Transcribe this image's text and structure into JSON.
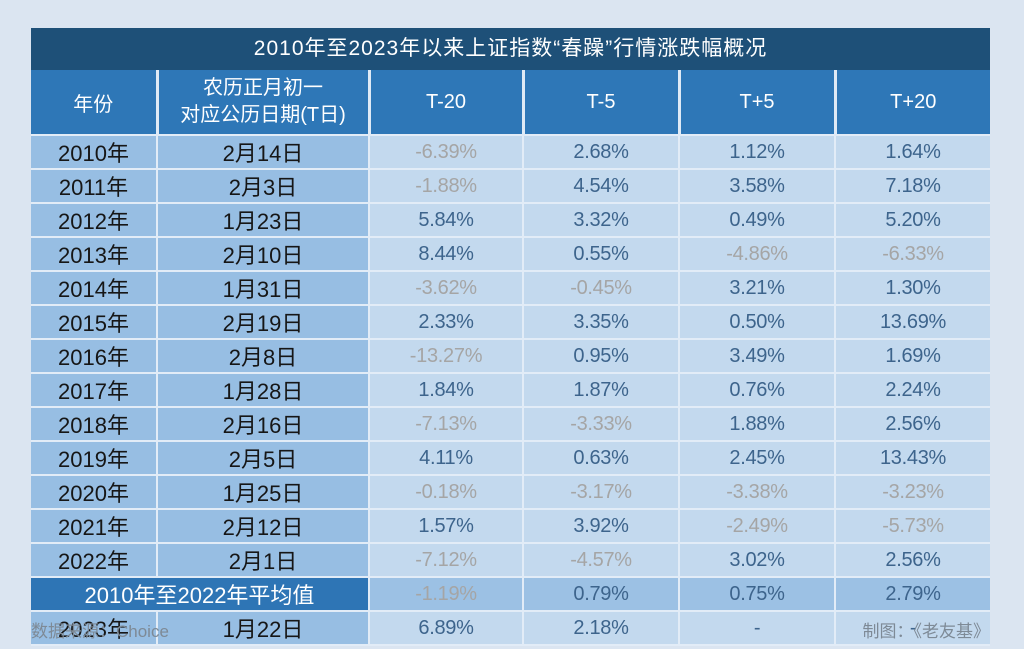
{
  "chart_data": {
    "type": "table",
    "title": "2010年至2023年以来上证指数“春躁”行情涨跌幅概况",
    "columns": [
      "年份",
      "农历正月初一对应公历日期(T日)",
      "T-20",
      "T-5",
      "T+5",
      "T+20"
    ],
    "rows": [
      {
        "year": "2010年",
        "date": "2月14日",
        "values": [
          "-6.39%",
          "2.68%",
          "1.12%",
          "1.64%"
        ]
      },
      {
        "year": "2011年",
        "date": "2月3日",
        "values": [
          "-1.88%",
          "4.54%",
          "3.58%",
          "7.18%"
        ]
      },
      {
        "year": "2012年",
        "date": "1月23日",
        "values": [
          "5.84%",
          "3.32%",
          "0.49%",
          "5.20%"
        ]
      },
      {
        "year": "2013年",
        "date": "2月10日",
        "values": [
          "8.44%",
          "0.55%",
          "-4.86%",
          "-6.33%"
        ]
      },
      {
        "year": "2014年",
        "date": "1月31日",
        "values": [
          "-3.62%",
          "-0.45%",
          "3.21%",
          "1.30%"
        ]
      },
      {
        "year": "2015年",
        "date": "2月19日",
        "values": [
          "2.33%",
          "3.35%",
          "0.50%",
          "13.69%"
        ]
      },
      {
        "year": "2016年",
        "date": "2月8日",
        "values": [
          "-13.27%",
          "0.95%",
          "3.49%",
          "1.69%"
        ]
      },
      {
        "year": "2017年",
        "date": "1月28日",
        "values": [
          "1.84%",
          "1.87%",
          "0.76%",
          "2.24%"
        ]
      },
      {
        "year": "2018年",
        "date": "2月16日",
        "values": [
          "-7.13%",
          "-3.33%",
          "1.88%",
          "2.56%"
        ]
      },
      {
        "year": "2019年",
        "date": "2月5日",
        "values": [
          "4.11%",
          "0.63%",
          "2.45%",
          "13.43%"
        ]
      },
      {
        "year": "2020年",
        "date": "1月25日",
        "values": [
          "-0.18%",
          "-3.17%",
          "-3.38%",
          "-3.23%"
        ]
      },
      {
        "year": "2021年",
        "date": "2月12日",
        "values": [
          "1.57%",
          "3.92%",
          "-2.49%",
          "-5.73%"
        ]
      },
      {
        "year": "2022年",
        "date": "2月1日",
        "values": [
          "-7.12%",
          "-4.57%",
          "3.02%",
          "2.56%"
        ]
      }
    ],
    "average_row": {
      "label": "2010年至2022年平均值",
      "values": [
        "-1.19%",
        "0.79%",
        "0.75%",
        "2.79%"
      ]
    },
    "final_row": {
      "year": "2023年",
      "date": "1月22日",
      "values": [
        "6.89%",
        "2.18%",
        "-",
        "-"
      ]
    }
  },
  "header": {
    "col_year": "年份",
    "col_date_line1": "农历正月初一",
    "col_date_line2": "对应公历日期(T日)",
    "col_t_minus_20": "T-20",
    "col_t_minus_5": "T-5",
    "col_t_plus_5": "T+5",
    "col_t_plus_20": "T+20"
  },
  "footer": {
    "source": "数据来源：Choice",
    "credit": "制图：《老友基》"
  },
  "colors": {
    "page_bg": "#dbe5f1",
    "title_bg": "#1e5078",
    "header_bg": "#2e77b7",
    "label_bg": "#97bee3",
    "cell_bg": "#c3d9ee",
    "avg_label_bg": "#2e75b5",
    "avg_cell_bg": "#9cc1e4",
    "positive_value": "#3d648c",
    "negative_value": "#a5a5a5",
    "footer_text": "#7e8a96"
  }
}
